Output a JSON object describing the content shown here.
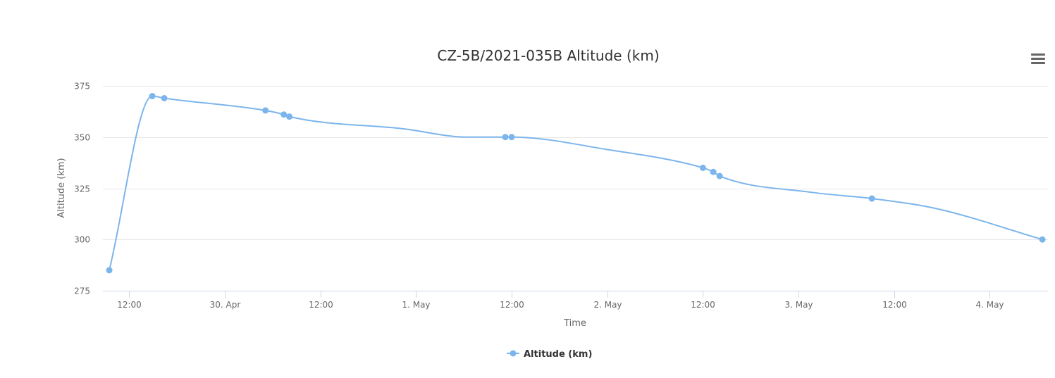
{
  "chart_data": {
    "type": "line",
    "title": "CZ-5B/2021-035B Altitude (km)",
    "xlabel": "Time",
    "ylabel": "Altitude (km)",
    "ylim": [
      275,
      375
    ],
    "yticks": [
      275,
      300,
      325,
      350,
      375
    ],
    "x_range_hours": [
      -15.3,
      103.3
    ],
    "xticks": [
      {
        "hour": -12,
        "label": "12:00"
      },
      {
        "hour": 0,
        "label": "30. Apr"
      },
      {
        "hour": 12,
        "label": "12:00"
      },
      {
        "hour": 24,
        "label": "1. May"
      },
      {
        "hour": 36,
        "label": "12:00"
      },
      {
        "hour": 48,
        "label": "2. May"
      },
      {
        "hour": 60,
        "label": "12:00"
      },
      {
        "hour": 72,
        "label": "3. May"
      },
      {
        "hour": 84,
        "label": "12:00"
      },
      {
        "hour": 96,
        "label": "4. May"
      }
    ],
    "grid": true,
    "legend": "bottom-center",
    "series": [
      {
        "name": "Altitude (km)",
        "color": "#7cb5ec",
        "points": [
          {
            "hour": -14.5,
            "y": 285
          },
          {
            "hour": -9.1,
            "y": 370
          },
          {
            "hour": -7.6,
            "y": 369
          },
          {
            "hour": 5.1,
            "y": 363
          },
          {
            "hour": 7.4,
            "y": 361
          },
          {
            "hour": 8.1,
            "y": 360
          },
          {
            "hour": 22.5,
            "y": 354
          },
          {
            "hour": 30.4,
            "y": 350
          },
          {
            "hour": 35.2,
            "y": 350
          },
          {
            "hour": 36.0,
            "y": 350
          },
          {
            "hour": 47.9,
            "y": 344
          },
          {
            "hour": 60.0,
            "y": 335
          },
          {
            "hour": 61.3,
            "y": 333
          },
          {
            "hour": 62.1,
            "y": 331
          },
          {
            "hour": 73.7,
            "y": 323
          },
          {
            "hour": 81.2,
            "y": 320
          },
          {
            "hour": 89.4,
            "y": 315
          },
          {
            "hour": 102.6,
            "y": 300
          }
        ],
        "marker_hours": [
          -14.5,
          -9.1,
          -7.6,
          5.1,
          7.4,
          8.1,
          35.2,
          36.0,
          60.0,
          61.3,
          62.1,
          81.2,
          102.6
        ]
      }
    ]
  }
}
